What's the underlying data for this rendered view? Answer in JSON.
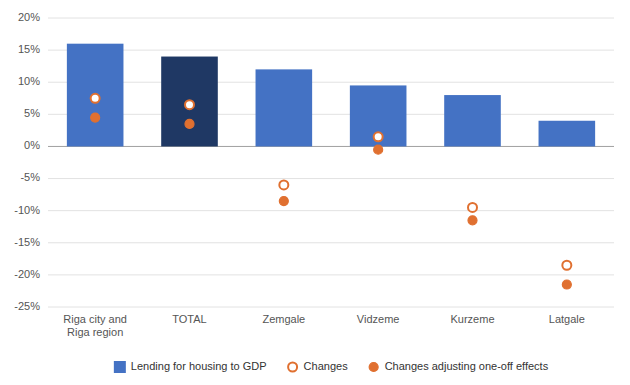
{
  "chart_data": {
    "type": "bar",
    "categories": [
      "Riga city and\nRiga region",
      "TOTAL",
      "Zemgale",
      "Vidzeme",
      "Kurzeme",
      "Latgale"
    ],
    "series": [
      {
        "name": "Lending for housing to GDP",
        "type": "bar",
        "color": "#4472C4",
        "colors": [
          "#4472C4",
          "#1F3864",
          "#4472C4",
          "#4472C4",
          "#4472C4",
          "#4472C4"
        ],
        "values": [
          16,
          14,
          12,
          9.5,
          8,
          4
        ]
      },
      {
        "name": "Changes",
        "type": "scatter",
        "color": "#E07030",
        "marker": "open-circle",
        "values": [
          7.5,
          6.5,
          -6.0,
          1.5,
          -9.5,
          -18.5
        ]
      },
      {
        "name": "Changes adjusting one-off effects",
        "type": "scatter",
        "color": "#E07030",
        "marker": "circle",
        "values": [
          4.5,
          3.5,
          -8.5,
          -0.5,
          -11.5,
          -21.5
        ]
      }
    ],
    "ylim": [
      -25,
      20
    ],
    "yticks": [
      {
        "value": -25,
        "label": "-25%"
      },
      {
        "value": -20,
        "label": "-20%"
      },
      {
        "value": -15,
        "label": "-15%"
      },
      {
        "value": -10,
        "label": "-10%"
      },
      {
        "value": -5,
        "label": "-5%"
      },
      {
        "value": 0,
        "label": "0%"
      },
      {
        "value": 5,
        "label": "5%"
      },
      {
        "value": 10,
        "label": "10%"
      },
      {
        "value": 15,
        "label": "15%"
      },
      {
        "value": 20,
        "label": "20%"
      }
    ],
    "grid": true,
    "legend": "bottom"
  }
}
